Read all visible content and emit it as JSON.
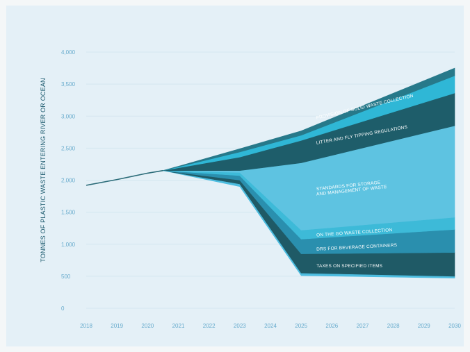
{
  "chart_data": {
    "type": "area",
    "title": "",
    "xlabel": "",
    "ylabel": "TONNES OF PLASTIC WASTE ENTERING RIVER OR OCEAN",
    "ylim": [
      0,
      4000
    ],
    "yticks": [
      "0",
      "500",
      "1,000",
      "1,500",
      "2,000",
      "2,500",
      "3,000",
      "3,500",
      "4,000"
    ],
    "ytick_values": [
      0,
      500,
      1000,
      1500,
      2000,
      2500,
      3000,
      3500,
      4000
    ],
    "categories": [
      "2018",
      "2019",
      "2020",
      "2021",
      "2022",
      "2023",
      "2024",
      "2025",
      "2026",
      "2027",
      "2028",
      "2029",
      "2030"
    ],
    "grid": true,
    "colors": {
      "trend_line": "#2a6b78",
      "bottom_sliver": "#4dbde0",
      "taxes": "#1f5a66",
      "drs": "#2a8fae",
      "on_the_go": "#3dbad8",
      "standards": "#5ec3e1",
      "litter": "#1e5d6a",
      "provision": "#2fb7d6",
      "top_band": "#27798a"
    },
    "series": [
      {
        "x": [
          2018,
          2019,
          2020,
          2020.5
        ],
        "values": [
          1920,
          2010,
          2110,
          2150
        ]
      },
      {
        "x": [
          2020.5,
          2023,
          2025,
          2030
        ],
        "values": [
          2150,
          1900,
          510,
          470
        ]
      },
      {
        "name": "TAXES ON SPECIFIED ITEMS",
        "x": [
          2020.5,
          2023,
          2025,
          2030
        ],
        "values": [
          2150,
          1940,
          550,
          500
        ]
      },
      {
        "name": "DRS FOR BEVERAGE CONTAINERS",
        "x": [
          2020.5,
          2023,
          2025,
          2030
        ],
        "values": [
          2150,
          2000,
          850,
          870
        ]
      },
      {
        "name": "ON THE GO WASTE COLLECTION",
        "x": [
          2020.5,
          2023,
          2025,
          2030
        ],
        "values": [
          2150,
          2070,
          1080,
          1230
        ]
      },
      {
        "name": "STANDARDS FOR STORAGE AND MANAGEMENT OF WASTE",
        "x": [
          2020.5,
          2023,
          2025,
          2030
        ],
        "values": [
          2150,
          2120,
          1220,
          1420
        ]
      },
      {
        "name": "LITTER AND FLY TIPPING REGULATIONS",
        "x": [
          2020.5,
          2023,
          2025,
          2030
        ],
        "values": [
          2150,
          2150,
          2270,
          2850
        ]
      },
      {
        "name": "PROVISION OF SOLID WASTE COLLECTION",
        "x": [
          2020.5,
          2023,
          2025,
          2030
        ],
        "values": [
          2150,
          2360,
          2620,
          3360
        ]
      },
      {
        "x": [
          2020.5,
          2023,
          2025,
          2030
        ],
        "values": [
          2150,
          2440,
          2700,
          3630
        ]
      },
      {
        "x": [
          2020.5,
          2023,
          2025,
          2030
        ],
        "values": [
          2150,
          2490,
          2770,
          3750
        ]
      }
    ],
    "labels": [
      {
        "text": "PROVISION OF SOLID WASTE COLLECTION",
        "x": 2025.5,
        "y": 2950,
        "angle": -13
      },
      {
        "text": "LITTER AND FLY TIPPING REGULATIONS",
        "x": 2025.5,
        "y": 2560,
        "angle": -10
      },
      {
        "text": "STANDARDS FOR STORAGE",
        "x": 2025.5,
        "y": 1840,
        "angle": -6
      },
      {
        "text": "AND MANAGEMENT OF WASTE",
        "x": 2025.5,
        "y": 1760,
        "angle": -6
      },
      {
        "text": "ON THE GO WASTE COLLECTION",
        "x": 2025.5,
        "y": 1120,
        "angle": -4
      },
      {
        "text": "DRS FOR BEVERAGE CONTAINERS",
        "x": 2025.5,
        "y": 900,
        "angle": -3
      },
      {
        "text": "TAXES ON SPECIFIED ITEMS",
        "x": 2025.5,
        "y": 640,
        "angle": 0
      }
    ]
  }
}
